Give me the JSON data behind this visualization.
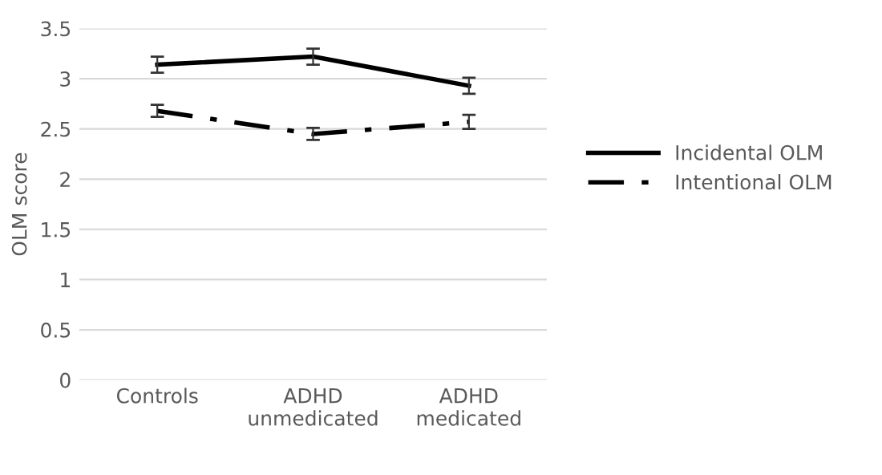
{
  "chart_data": {
    "type": "line",
    "ylabel": "OLM score",
    "categories": [
      "Controls",
      "ADHD\nunmedicated",
      "ADHD\nmedicated"
    ],
    "series": [
      {
        "name": "Incidental OLM",
        "color": "#000000",
        "line_style": "solid",
        "values": [
          3.14,
          3.22,
          2.93
        ],
        "errors": [
          0.08,
          0.08,
          0.08
        ]
      },
      {
        "name": "Intentional OLM",
        "color": "#000000",
        "line_style": "dashed",
        "values": [
          2.68,
          2.45,
          2.57
        ],
        "errors": [
          0.06,
          0.06,
          0.07
        ]
      }
    ],
    "ylim": [
      0,
      3.5
    ],
    "yticks": [
      0,
      0.5,
      1,
      1.5,
      2,
      2.5,
      3,
      3.5
    ],
    "grid": "y",
    "legend": "right",
    "marker": "none"
  }
}
